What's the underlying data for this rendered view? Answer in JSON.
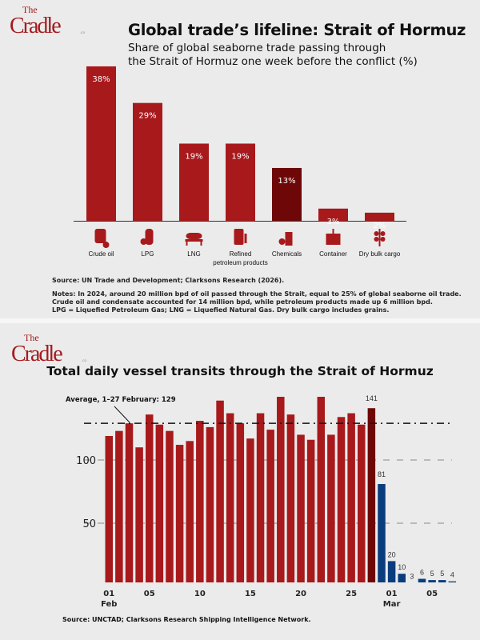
{
  "brand": {
    "logo_the": "The",
    "logo_name": "Cradle",
    "logo_suffix": ".co"
  },
  "top": {
    "title": "Global trade’s lifeline: Strait of Hormuz",
    "subtitle_line1": "Share of global seaborne trade passing through",
    "subtitle_line2": "the Strait of Hormuz one week before the conflict (%)",
    "source": "Source: UN Trade and Development; Clarksons Research (2026).",
    "notes": [
      "Notes: In 2024, around 20 million bpd of oil passed through the Strait, equal to 25% of global seaborne oil trade.",
      "Crude oil and condensate accounted for 14 million bpd, while petroleum products made up 6 million bpd.",
      "LPG = Liquefied Petroleum Gas; LNG = Liquefied Natural Gas. Dry bulk cargo includes grains."
    ]
  },
  "bottom": {
    "title": "Total daily vessel transits through the Strait of Hormuz",
    "source": "Source: UNCTAD; Clarksons Research Shipping Intelligence Network."
  },
  "colors": {
    "red": "#a8191c",
    "dark_red": "#6e0808",
    "blue": "#0a3d7e"
  },
  "chart_data": [
    {
      "type": "bar",
      "title": "Global trade’s lifeline: Strait of Hormuz",
      "ylabel": "%",
      "categories": [
        "Crude oil",
        "LPG",
        "LNG",
        "Refined petroleum products",
        "Chemicals",
        "Container",
        "Dry bulk cargo"
      ],
      "category_lines": [
        [
          "Crude oil"
        ],
        [
          "LPG"
        ],
        [
          "LNG"
        ],
        [
          "Refined",
          "petroleum products"
        ],
        [
          "Chemicals"
        ],
        [
          "Container"
        ],
        [
          "Dry bulk cargo"
        ]
      ],
      "icons": [
        "oil-barrel-icon",
        "gas-cylinder-icon",
        "lng-tank-icon",
        "fuel-pump-icon",
        "chemical-flask-icon",
        "shipping-container-icon",
        "wheat-icon"
      ],
      "values": [
        38,
        29,
        19,
        19,
        13,
        3,
        2
      ],
      "labels": [
        "38%",
        "29%",
        "19%",
        "19%",
        "13%",
        "3%",
        "2%"
      ],
      "highlight_index": 4,
      "ylim": [
        0,
        40
      ]
    },
    {
      "type": "bar",
      "title": "Total daily vessel transits through the Strait of Hormuz",
      "x": [
        "01 Feb",
        "02 Feb",
        "03 Feb",
        "04 Feb",
        "05 Feb",
        "06 Feb",
        "07 Feb",
        "08 Feb",
        "09 Feb",
        "10 Feb",
        "11 Feb",
        "12 Feb",
        "13 Feb",
        "14 Feb",
        "15 Feb",
        "16 Feb",
        "17 Feb",
        "18 Feb",
        "19 Feb",
        "20 Feb",
        "21 Feb",
        "22 Feb",
        "23 Feb",
        "24 Feb",
        "25 Feb",
        "26 Feb",
        "27 Feb",
        "28 Feb",
        "01 Mar",
        "02 Mar",
        "03 Mar",
        "04 Mar",
        "05 Mar",
        "06 Mar",
        "07 Mar"
      ],
      "values": [
        119,
        123,
        129,
        110,
        136,
        128,
        123,
        112,
        115,
        131,
        126,
        147,
        137,
        129,
        117,
        137,
        124,
        150,
        136,
        120,
        116,
        150,
        120,
        134,
        137,
        128,
        141,
        81,
        20,
        10,
        3,
        6,
        5,
        5,
        4
      ],
      "labeled_from_index": 26,
      "dark_index": 26,
      "blue_from_index": 27,
      "xticks": [
        {
          "i": 0,
          "label": "01",
          "sub": "Feb"
        },
        {
          "i": 4,
          "label": "05"
        },
        {
          "i": 9,
          "label": "10"
        },
        {
          "i": 14,
          "label": "15"
        },
        {
          "i": 19,
          "label": "20"
        },
        {
          "i": 24,
          "label": "25"
        },
        {
          "i": 28,
          "label": "01",
          "sub": "Mar"
        },
        {
          "i": 32,
          "label": "05"
        }
      ],
      "yticks": [
        50,
        100
      ],
      "average": {
        "value": 129,
        "label": "Average, 1–27 February: 129"
      },
      "ylim": [
        0,
        155
      ]
    }
  ]
}
